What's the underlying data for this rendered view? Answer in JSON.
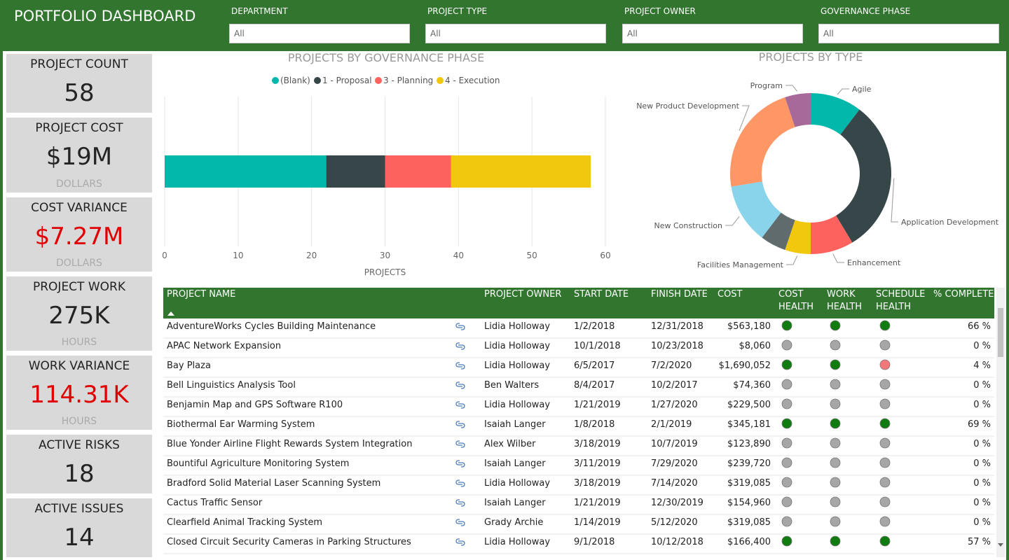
{
  "header": {
    "title": "PORTFOLIO DASHBOARD"
  },
  "filters": [
    {
      "label": "DEPARTMENT",
      "value": "All"
    },
    {
      "label": "PROJECT TYPE",
      "value": "All"
    },
    {
      "label": "PROJECT OWNER",
      "value": "All"
    },
    {
      "label": "GOVERNANCE PHASE",
      "value": "All"
    }
  ],
  "kpis": [
    {
      "label": "PROJECT COUNT",
      "value": "58"
    },
    {
      "label": "PROJECT COST",
      "value": "$19M",
      "unit": "DOLLARS"
    },
    {
      "label": "COST VARIANCE",
      "value": "$7.27M",
      "unit": "DOLLARS",
      "color": "#e00000"
    },
    {
      "label": "PROJECT WORK",
      "value": "275K",
      "unit": "HOURS"
    },
    {
      "label": "WORK VARIANCE",
      "value": "114.31K",
      "unit": "HOURS",
      "color": "#e00000"
    },
    {
      "label": "ACTIVE RISKS",
      "value": "18"
    },
    {
      "label": "ACTIVE ISSUES",
      "value": "14"
    }
  ],
  "chart_data": [
    {
      "type": "bar",
      "orientation": "horizontal",
      "stacked": true,
      "title": "PROJECTS BY GOVERNANCE PHASE",
      "x_label": "PROJECTS",
      "categories": [
        null
      ],
      "series": [
        {
          "name": "(Blank)",
          "color": "#01b8aa",
          "values": [
            22
          ]
        },
        {
          "name": "1 - Proposal",
          "color": "#374649",
          "values": [
            8
          ]
        },
        {
          "name": "3 - Planning",
          "color": "#fd625e",
          "values": [
            9
          ]
        },
        {
          "name": "4 - Execution",
          "color": "#f2c80f",
          "values": [
            19
          ]
        }
      ],
      "xlim": [
        0,
        60
      ],
      "xticks": [
        0,
        10,
        20,
        30,
        40,
        50,
        60
      ],
      "grid": true,
      "legend": "top"
    },
    {
      "type": "pie",
      "donut": true,
      "title": "PROJECTS BY TYPE",
      "categories": [
        "Agile",
        "Application Development",
        "Enhancement",
        "Facilities Management",
        null,
        "New Construction",
        "New Product Development",
        "Program"
      ],
      "values": [
        6,
        18,
        5,
        3,
        3,
        7,
        13,
        3
      ],
      "colors": [
        "#01b8aa",
        "#374649",
        "#fd625e",
        "#f2c80f",
        "#5f6b6d",
        "#8ad4eb",
        "#fe9666",
        "#a66999"
      ]
    }
  ],
  "table": {
    "columns": [
      "PROJECT NAME",
      "PROJECT OWNER",
      "START DATE",
      "FINISH DATE",
      "COST",
      "COST HEALTH",
      "WORK HEALTH",
      "SCHEDULE HEALTH",
      "% COMPLETE"
    ],
    "rows": [
      [
        "AdventureWorks Cycles Building Maintenance",
        "Lidia Holloway",
        "1/2/2018",
        "12/31/2018",
        "$563,180",
        "66 %"
      ],
      [
        "APAC Network Expansion",
        "Lidia Holloway",
        "10/1/2018",
        "10/23/2018",
        "$8,060",
        "0 %"
      ],
      [
        "Bay Plaza",
        "Lidia Holloway",
        "6/5/2017",
        "7/2/2020",
        "$1,690,052",
        "4 %"
      ],
      [
        "Bell Linguistics Analysis Tool",
        "Ben Walters",
        "8/4/2017",
        "10/2/2017",
        "$74,360",
        "0 %"
      ],
      [
        "Benjamin Map and GPS Software R100",
        "Lidia Holloway",
        "1/21/2019",
        "1/27/2020",
        "$229,500",
        "0 %"
      ],
      [
        "Biothermal Ear Warming System",
        "Isaiah Langer",
        "1/8/2018",
        "2/1/2019",
        "$345,181",
        "69 %"
      ],
      [
        "Blue Yonder Airline Flight Rewards System Integration",
        "Alex Wilber",
        "3/18/2019",
        "10/7/2019",
        "$123,890",
        "0 %"
      ],
      [
        "Bountiful Agriculture Monitoring System",
        "Isaiah Langer",
        "3/11/2019",
        "7/29/2020",
        "$239,720",
        "0 %"
      ],
      [
        "Bradford Solid Material Laser Scanning System",
        "Lidia Holloway",
        "3/18/2019",
        "7/14/2020",
        "$319,085",
        "0 %"
      ],
      [
        "Cactus Traffic Sensor",
        "Isaiah Langer",
        "1/21/2019",
        "12/30/2019",
        "$154,960",
        "0 %"
      ],
      [
        "Clearfield Animal Tracking System",
        "Grady Archie",
        "1/14/2019",
        "5/12/2020",
        "$319,085",
        "0 %"
      ],
      [
        "Closed Circuit Security Cameras in Parking Structures",
        "Lidia Holloway",
        "9/1/2018",
        "10/12/2018",
        "$166,400",
        "57 %"
      ]
    ],
    "health": [
      [
        "#107c10",
        "#107c10",
        "#107c10"
      ],
      [
        "#a6a6a6",
        "#a6a6a6",
        "#a6a6a6"
      ],
      [
        "#107c10",
        "#107c10",
        "#f4777a"
      ],
      [
        "#a6a6a6",
        "#a6a6a6",
        "#a6a6a6"
      ],
      [
        "#a6a6a6",
        "#a6a6a6",
        "#a6a6a6"
      ],
      [
        "#107c10",
        "#107c10",
        "#107c10"
      ],
      [
        "#a6a6a6",
        "#a6a6a6",
        "#a6a6a6"
      ],
      [
        "#a6a6a6",
        "#a6a6a6",
        "#a6a6a6"
      ],
      [
        "#a6a6a6",
        "#a6a6a6",
        "#a6a6a6"
      ],
      [
        "#a6a6a6",
        "#a6a6a6",
        "#a6a6a6"
      ],
      [
        "#a6a6a6",
        "#a6a6a6",
        "#a6a6a6"
      ],
      [
        "#107c10",
        "#107c10",
        "#107c10"
      ]
    ]
  }
}
